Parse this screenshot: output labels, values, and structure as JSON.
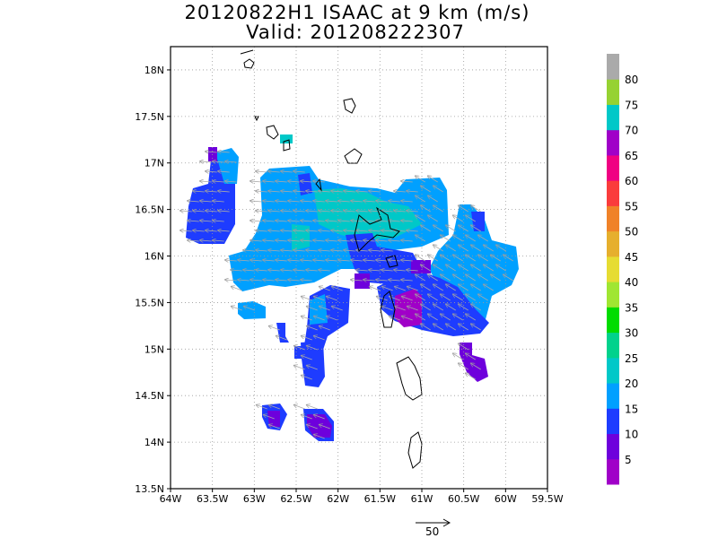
{
  "header": {
    "title": "20120822H1 ISAAC at 9 km (m/s)",
    "subtitle": "Valid: 201208222307"
  },
  "map": {
    "lon_range": [
      -64.0,
      -59.5
    ],
    "lat_range": [
      13.5,
      18.25
    ],
    "lon_ticks": [
      "64W",
      "63.5W",
      "63W",
      "62.5W",
      "62W",
      "61.5W",
      "61W",
      "60.5W",
      "60W",
      "59.5W"
    ],
    "lat_ticks": [
      "13.5N",
      "14N",
      "14.5N",
      "15N",
      "15.5N",
      "16N",
      "16.5N",
      "17N",
      "17.5N",
      "18N"
    ],
    "grid": "dotted",
    "reference_vector_label": "50"
  },
  "colorbar": {
    "labels": [
      "5",
      "10",
      "15",
      "20",
      "25",
      "30",
      "35",
      "40",
      "45",
      "50",
      "55",
      "60",
      "65",
      "70",
      "75",
      "80"
    ],
    "colors": [
      "#a000c8",
      "#6e00dc",
      "#1e3cff",
      "#00a0ff",
      "#00c8c8",
      "#00d28c",
      "#00dc00",
      "#a0e632",
      "#e6dc32",
      "#e6af2d",
      "#f08228",
      "#fa3c3c",
      "#f00082",
      "#a000c8",
      "#00c8c8",
      "#96d232",
      "#aaaaaa"
    ]
  },
  "chart_data": {
    "type": "heatmap",
    "title": "20120822H1 ISAAC at 9 km (m/s)",
    "subtitle": "Valid: 201208222307",
    "x_axis": "longitude",
    "y_axis": "latitude",
    "xlim": [
      -64.0,
      -59.5
    ],
    "ylim": [
      13.5,
      18.25
    ],
    "value_range": [
      0,
      85
    ],
    "regions": [
      {
        "lon": -63.3,
        "lat": 16.55,
        "speed": 15
      },
      {
        "lon": -63.2,
        "lat": 16.85,
        "speed": 20
      },
      {
        "lon": -62.7,
        "lat": 16.0,
        "speed": 20
      },
      {
        "lon": -62.3,
        "lat": 16.5,
        "speed": 20
      },
      {
        "lon": -61.8,
        "lat": 16.55,
        "speed": 25
      },
      {
        "lon": -61.4,
        "lat": 16.5,
        "speed": 25
      },
      {
        "lon": -61.1,
        "lat": 16.6,
        "speed": 20
      },
      {
        "lon": -60.5,
        "lat": 16.0,
        "speed": 20
      },
      {
        "lon": -60.8,
        "lat": 15.5,
        "speed": 15
      },
      {
        "lon": -61.0,
        "lat": 15.6,
        "speed": 5
      },
      {
        "lon": -62.0,
        "lat": 15.4,
        "speed": 15
      },
      {
        "lon": -62.1,
        "lat": 14.8,
        "speed": 15
      },
      {
        "lon": -62.7,
        "lat": 14.3,
        "speed": 5
      },
      {
        "lon": -62.0,
        "lat": 14.2,
        "speed": 5
      },
      {
        "lon": -60.3,
        "lat": 14.8,
        "speed": 5
      }
    ]
  }
}
